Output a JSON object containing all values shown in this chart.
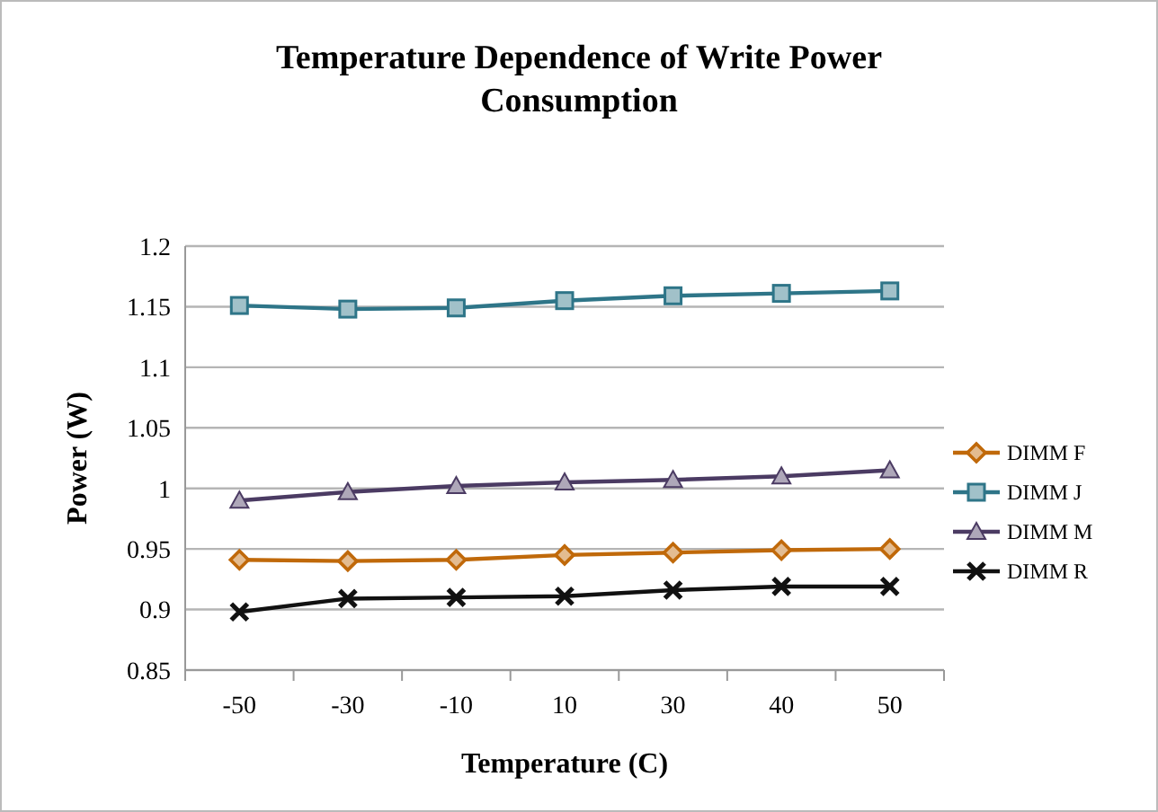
{
  "chart_data": {
    "type": "line",
    "title": "Temperature Dependence of Write Power Consumption",
    "xlabel": "Temperature (C)",
    "ylabel": "Power (W)",
    "categories": [
      "-50",
      "-30",
      "-10",
      "10",
      "30",
      "40",
      "50"
    ],
    "series": [
      {
        "name": "DIMM F",
        "color": "#c0690a",
        "marker": "diamond",
        "values": [
          0.941,
          0.94,
          0.941,
          0.945,
          0.947,
          0.949,
          0.95
        ]
      },
      {
        "name": "DIMM J",
        "color": "#2e7588",
        "marker": "square",
        "values": [
          1.151,
          1.148,
          1.149,
          1.155,
          1.159,
          1.161,
          1.163
        ]
      },
      {
        "name": "DIMM M",
        "color": "#4b3b63",
        "marker": "triangle",
        "values": [
          0.99,
          0.997,
          1.002,
          1.005,
          1.007,
          1.01,
          1.015
        ]
      },
      {
        "name": "DIMM R",
        "color": "#111111",
        "marker": "cross",
        "values": [
          0.898,
          0.909,
          0.91,
          0.911,
          0.916,
          0.919,
          0.919
        ]
      }
    ],
    "ylim": [
      0.85,
      1.2
    ],
    "yticks": [
      {
        "value": 0.85,
        "label": "0.85"
      },
      {
        "value": 0.9,
        "label": "0.9"
      },
      {
        "value": 0.95,
        "label": "0.95"
      },
      {
        "value": 1,
        "label": "1"
      },
      {
        "value": 1.05,
        "label": "1.05"
      },
      {
        "value": 1.1,
        "label": "1.1"
      },
      {
        "value": 1.15,
        "label": "1.15"
      },
      {
        "value": 1.2,
        "label": "1.2"
      }
    ],
    "grid": "y",
    "legend": "right"
  }
}
